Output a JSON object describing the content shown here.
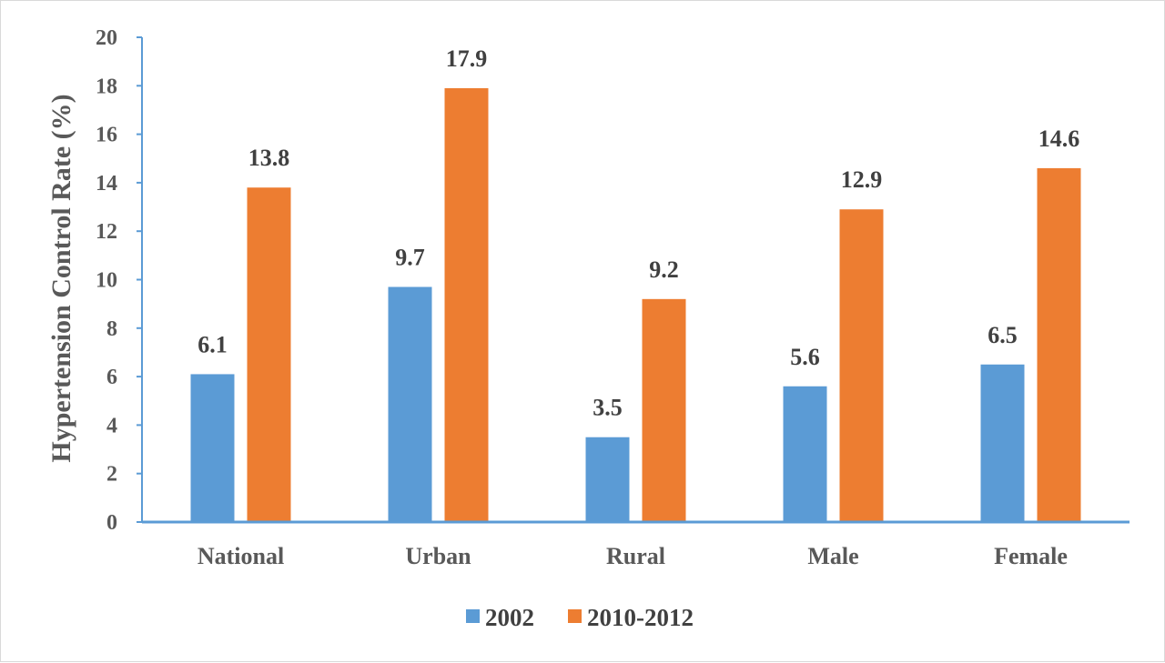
{
  "chart_data": {
    "type": "bar",
    "categories": [
      "National",
      "Urban",
      "Rural",
      "Male",
      "Female"
    ],
    "series": [
      {
        "name": "2002",
        "values": [
          6.1,
          9.7,
          3.5,
          5.6,
          6.5
        ],
        "color": "#5b9bd5"
      },
      {
        "name": "2010-2012",
        "values": [
          13.8,
          17.9,
          9.2,
          12.9,
          14.6
        ],
        "color": "#ed7d31"
      }
    ],
    "ylabel": "Hypertension Control Rate (%)",
    "xlabel": "",
    "ylim": [
      0,
      20
    ],
    "yticks": [
      0,
      2,
      4,
      6,
      8,
      10,
      12,
      14,
      16,
      18,
      20
    ],
    "axis_color": "#5b9bd5",
    "grid": false,
    "legend_position": "bottom",
    "data_labels": true
  }
}
